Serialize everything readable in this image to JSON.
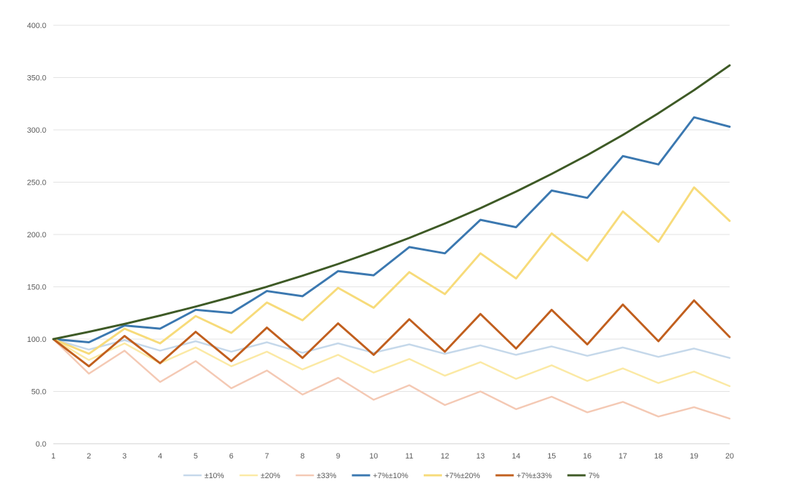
{
  "chart_data": {
    "type": "line",
    "title": "",
    "xlabel": "",
    "ylabel": "",
    "x": [
      1,
      2,
      3,
      4,
      5,
      6,
      7,
      8,
      9,
      10,
      11,
      12,
      13,
      14,
      15,
      16,
      17,
      18,
      19,
      20
    ],
    "x_tick_labels": [
      "1",
      "2",
      "3",
      "4",
      "5",
      "6",
      "7",
      "8",
      "9",
      "10",
      "11",
      "12",
      "13",
      "14",
      "15",
      "16",
      "17",
      "18",
      "19",
      "20"
    ],
    "ylim": [
      0,
      400
    ],
    "y_tick_labels": [
      "0.0",
      "50.0",
      "100.0",
      "150.0",
      "200.0",
      "250.0",
      "300.0",
      "350.0",
      "400.0"
    ],
    "y_ticks": [
      0,
      50,
      100,
      150,
      200,
      250,
      300,
      350,
      400
    ],
    "grid": true,
    "legend_position": "bottom",
    "series": [
      {
        "name": "±10%",
        "color": "#c5d8ea",
        "width": 2.5,
        "values": [
          100,
          90,
          99,
          89,
          98,
          88,
          97,
          87,
          96,
          87,
          95,
          86,
          94,
          85,
          93,
          84,
          92,
          83,
          91,
          82
        ]
      },
      {
        "name": "±20%",
        "color": "#fbe9a4",
        "width": 2.5,
        "values": [
          100,
          80,
          96,
          77,
          92,
          74,
          88,
          71,
          85,
          68,
          81,
          65,
          78,
          62,
          75,
          60,
          72,
          58,
          69,
          55
        ]
      },
      {
        "name": "±33%",
        "color": "#f4c9b4",
        "width": 2.5,
        "values": [
          100,
          67,
          89,
          59,
          79,
          53,
          70,
          47,
          63,
          42,
          56,
          37,
          50,
          33,
          45,
          30,
          40,
          26,
          35,
          24
        ]
      },
      {
        "name": "+7%±10%",
        "color": "#3b78b0",
        "width": 3,
        "values": [
          100,
          97,
          113,
          110,
          128,
          125,
          146,
          141,
          165,
          161,
          188,
          182,
          214,
          207,
          242,
          235,
          275,
          267,
          312,
          303
        ]
      },
      {
        "name": "+7%±20%",
        "color": "#f7db7a",
        "width": 3,
        "values": [
          100,
          86,
          110,
          96,
          122,
          106,
          135,
          118,
          149,
          130,
          164,
          143,
          182,
          158,
          201,
          175,
          222,
          193,
          245,
          213
        ]
      },
      {
        "name": "+7%±33%",
        "color": "#c15f1e",
        "width": 3,
        "values": [
          100,
          74,
          103,
          77,
          107,
          79,
          111,
          82,
          115,
          85,
          119,
          88,
          124,
          91,
          128,
          95,
          133,
          98,
          137,
          102
        ]
      },
      {
        "name": "7%",
        "color": "#3e5a26",
        "width": 3,
        "values": [
          100,
          107,
          114.5,
          122.5,
          131.1,
          140.3,
          150.1,
          160.6,
          171.8,
          183.8,
          196.7,
          210.5,
          225.2,
          241,
          257.9,
          275.9,
          295.2,
          315.9,
          338,
          361.7
        ]
      }
    ]
  }
}
